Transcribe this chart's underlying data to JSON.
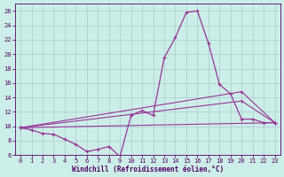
{
  "xlabel": "Windchill (Refroidissement éolien,°C)",
  "xlim": [
    -0.5,
    23.5
  ],
  "ylim": [
    6,
    27
  ],
  "xticks": [
    0,
    1,
    2,
    3,
    4,
    5,
    6,
    7,
    8,
    9,
    10,
    11,
    12,
    13,
    14,
    15,
    16,
    17,
    18,
    19,
    20,
    21,
    22,
    23
  ],
  "yticks": [
    6,
    8,
    10,
    12,
    14,
    16,
    18,
    20,
    22,
    24,
    26
  ],
  "background_color": "#cceee8",
  "grid_color": "#aacccc",
  "line_color": "#993399",
  "series": [
    {
      "x": [
        0,
        1,
        2,
        3,
        4,
        5,
        6,
        7,
        8,
        9,
        10,
        11,
        12,
        13,
        14,
        15,
        16,
        17,
        18,
        19,
        20,
        21,
        22,
        23
      ],
      "y": [
        9.8,
        9.5,
        9.0,
        8.9,
        8.2,
        7.5,
        6.5,
        6.8,
        7.2,
        5.8,
        11.5,
        12.2,
        11.5,
        19.5,
        22.3,
        25.8,
        26.0,
        21.5,
        15.8,
        14.5,
        11.0,
        11.0,
        10.5,
        10.5
      ]
    },
    {
      "x": [
        0,
        20,
        23
      ],
      "y": [
        9.8,
        14.8,
        10.5
      ]
    },
    {
      "x": [
        0,
        20,
        23
      ],
      "y": [
        9.8,
        13.5,
        10.5
      ]
    },
    {
      "x": [
        0,
        23
      ],
      "y": [
        9.8,
        10.5
      ]
    }
  ]
}
